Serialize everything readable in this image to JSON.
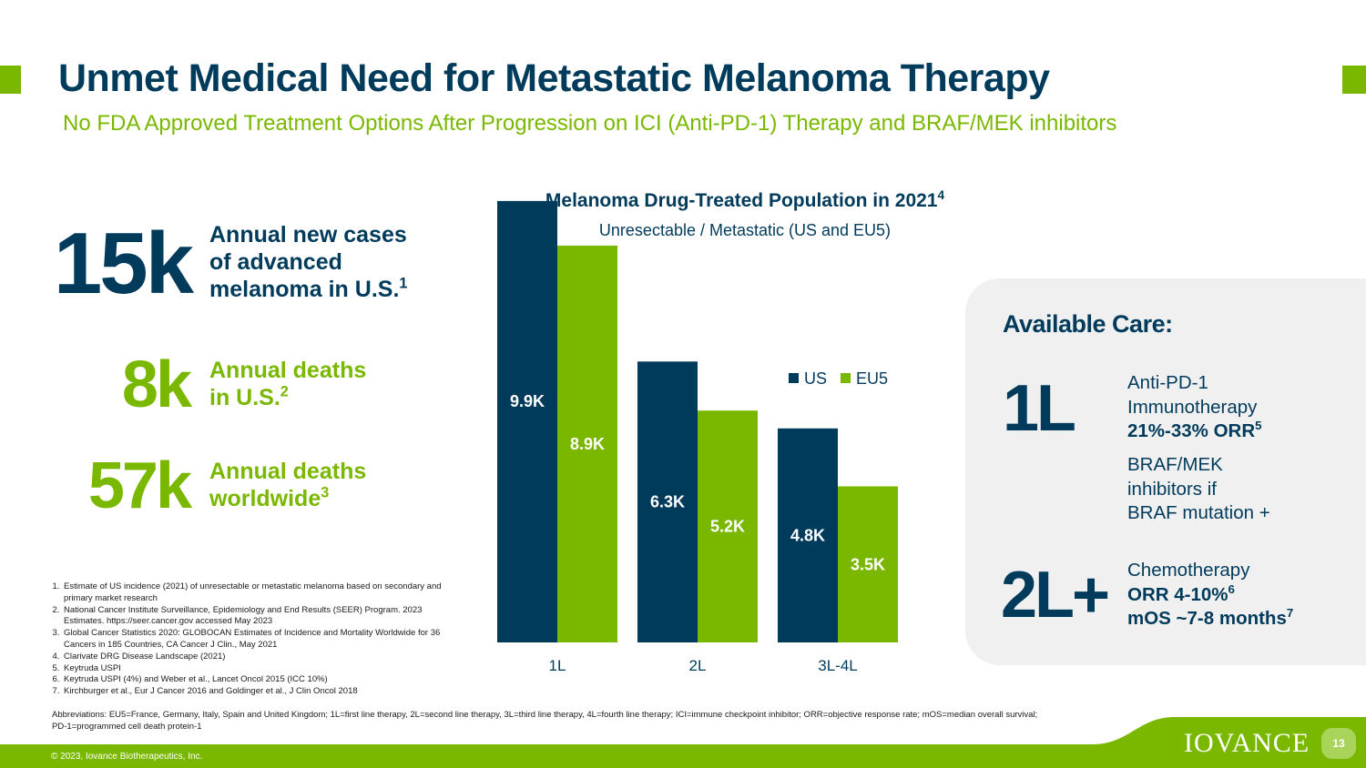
{
  "header": {
    "title": "Unmet Medical Need for Metastatic Melanoma Therapy",
    "subtitle": "No FDA Approved Treatment Options After Progression on ICI (Anti-PD-1) Therapy and BRAF/MEK inhibitors"
  },
  "stats": [
    {
      "value": "15k",
      "desc_lines": [
        "Annual new cases",
        "of advanced",
        "melanoma in U.S."
      ],
      "sup": "1"
    },
    {
      "value": "8k",
      "desc_lines": [
        "Annual deaths",
        "in U.S."
      ],
      "sup": "2"
    },
    {
      "value": "57k",
      "desc_lines": [
        "Annual deaths",
        "worldwide"
      ],
      "sup": "3"
    }
  ],
  "references": [
    "Estimate of US incidence (2021) of unresectable or metastatic melanoma based on secondary and primary market research",
    "National Cancer Institute Surveillance, Epidemiology and End Results (SEER) Program. 2023 Estimates. https://seer.cancer.gov accessed May 2023",
    "Global Cancer Statistics 2020: GLOBOCAN Estimates of Incidence and Mortality Worldwide for 36 Cancers in 185 Countries, CA Cancer J Clin., May 2021",
    "Clarivate DRG Disease Landscape (2021)",
    "Keytruda USPI",
    "Keytruda USPI (4%) and Weber et al., Lancet Oncol 2015 (ICC 10%)",
    "Kirchburger et al., Eur J Cancer 2016 and Goldinger et al., J Clin Oncol 2018"
  ],
  "abbreviations": "Abbreviations: EU5=France, Germany, Italy, Spain and United Kingdom; 1L=first line therapy, 2L=second line therapy, 3L=third line therapy, 4L=fourth line therapy; ICI=immune checkpoint inhibitor; ORR=objective response rate; mOS=median overall survival; PD-1=programmed cell death protein-1",
  "chart_data": {
    "type": "bar",
    "title": "Melanoma Drug-Treated Population in 2021",
    "title_sup": "4",
    "subtitle": "Unresectable / Metastatic (US and EU5)",
    "categories": [
      "1L",
      "2L",
      "3L-4L"
    ],
    "series": [
      {
        "name": "US",
        "values": [
          9.9,
          6.3,
          4.8
        ],
        "labels": [
          "9.9K",
          "6.3K",
          "4.8K"
        ],
        "color": "#003b5c"
      },
      {
        "name": "EU5",
        "values": [
          8.9,
          5.2,
          3.5
        ],
        "labels": [
          "8.9K",
          "5.2K",
          "3.5K"
        ],
        "color": "#7ab800"
      }
    ],
    "ylim": [
      0,
      10
    ],
    "grid": false,
    "legend": "right"
  },
  "care": {
    "title": "Available Care:",
    "lines": [
      {
        "label": "1L",
        "groups": [
          [
            {
              "text": "Anti-PD-1",
              "bold": false
            },
            {
              "text": "Immunotherapy",
              "bold": false
            },
            {
              "text": "21%-33% ORR",
              "bold": true,
              "sup": "5"
            }
          ],
          [
            {
              "text": "BRAF/MEK",
              "bold": false
            },
            {
              "text": "inhibitors if",
              "bold": false
            },
            {
              "text": "BRAF mutation +",
              "bold": false
            }
          ]
        ]
      },
      {
        "label": "2L+",
        "groups": [
          [
            {
              "text": "Chemotherapy",
              "bold": false
            },
            {
              "text": "ORR 4-10%",
              "bold": true,
              "sup": "6"
            },
            {
              "text": "mOS ~7-8 months",
              "bold": true,
              "sup": "7"
            }
          ]
        ]
      }
    ]
  },
  "footer": {
    "copyright": "© 2023, Iovance Biotherapeutics, Inc.",
    "logo": "IOVANCE",
    "page_number": "13"
  },
  "colors": {
    "navy": "#003b5c",
    "green": "#7ab800",
    "panel": "#f0f0f0"
  }
}
